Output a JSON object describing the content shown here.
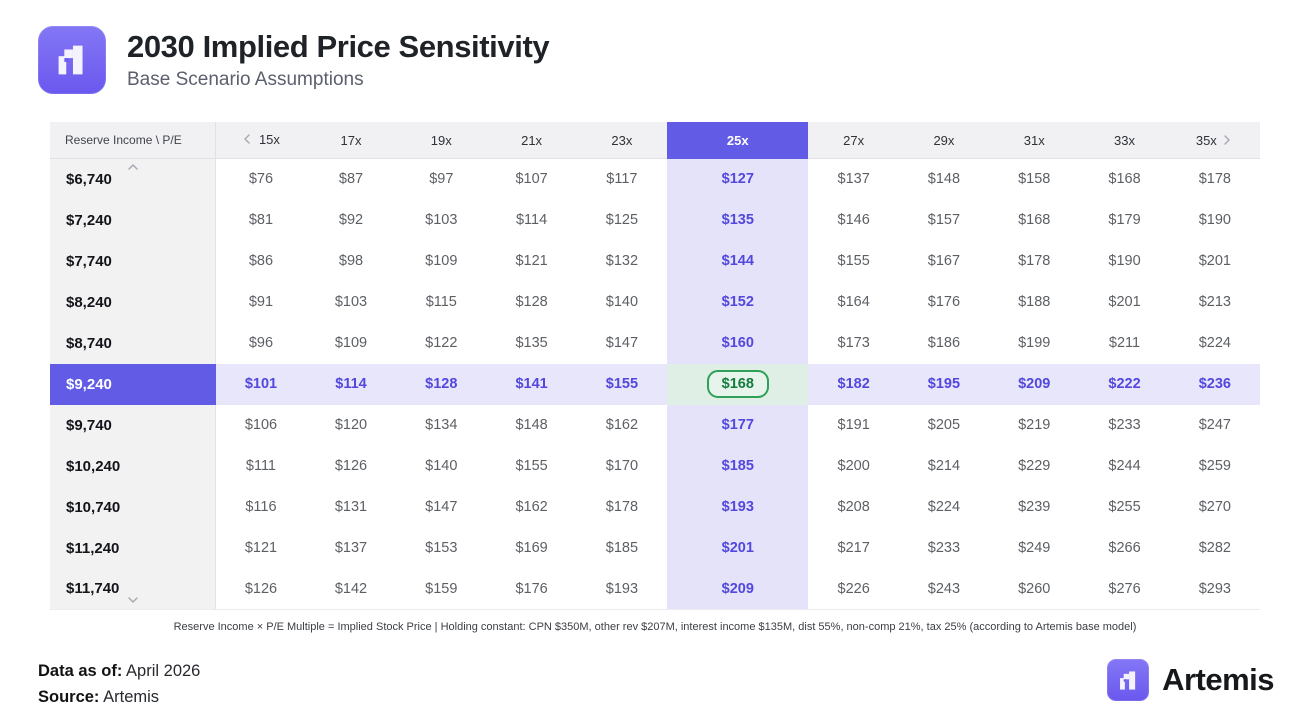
{
  "header": {
    "title": "2030 Implied Price Sensitivity",
    "subtitle": "Base Scenario Assumptions"
  },
  "table": {
    "corner_label": "Reserve Income \\ P/E",
    "footnote": "Reserve Income × P/E Multiple = Implied Stock Price | Holding constant: CPN $350M, other rev $207M, interest income $135M, dist 55%, non-comp 21%, tax 25% (according to Artemis base model)"
  },
  "chart_data": {
    "type": "table",
    "title": "2030 Implied Price Sensitivity",
    "subtitle": "Base Scenario Assumptions",
    "row_axis_label": "Reserve Income",
    "col_axis_label": "P/E",
    "columns": [
      "15x",
      "17x",
      "19x",
      "21x",
      "23x",
      "25x",
      "27x",
      "29x",
      "31x",
      "33x",
      "35x"
    ],
    "row_labels": [
      "$6,740",
      "$7,240",
      "$7,740",
      "$8,240",
      "$8,740",
      "$9,240",
      "$9,740",
      "$10,240",
      "$10,740",
      "$11,240",
      "$11,740"
    ],
    "values_usd": [
      [
        76,
        87,
        97,
        107,
        117,
        127,
        137,
        148,
        158,
        168,
        178
      ],
      [
        81,
        92,
        103,
        114,
        125,
        135,
        146,
        157,
        168,
        179,
        190
      ],
      [
        86,
        98,
        109,
        121,
        132,
        144,
        155,
        167,
        178,
        190,
        201
      ],
      [
        91,
        103,
        115,
        128,
        140,
        152,
        164,
        176,
        188,
        201,
        213
      ],
      [
        96,
        109,
        122,
        135,
        147,
        160,
        173,
        186,
        199,
        211,
        224
      ],
      [
        101,
        114,
        128,
        141,
        155,
        168,
        182,
        195,
        209,
        222,
        236
      ],
      [
        106,
        120,
        134,
        148,
        162,
        177,
        191,
        205,
        219,
        233,
        247
      ],
      [
        111,
        126,
        140,
        155,
        170,
        185,
        200,
        214,
        229,
        244,
        259
      ],
      [
        116,
        131,
        147,
        162,
        178,
        193,
        208,
        224,
        239,
        255,
        270
      ],
      [
        121,
        137,
        153,
        169,
        185,
        201,
        217,
        233,
        249,
        266,
        282
      ],
      [
        126,
        142,
        159,
        176,
        193,
        209,
        226,
        243,
        260,
        276,
        293
      ]
    ],
    "highlighted_column": "25x",
    "highlighted_row": "$9,240",
    "highlighted_cell_value": "$168"
  },
  "footer": {
    "data_as_of_label": "Data as of:",
    "data_as_of_value": "April 2026",
    "source_label": "Source:",
    "source_value": "Artemis",
    "brand_name": "Artemis"
  },
  "colors": {
    "accent": "#615BE6",
    "accent-text": "#5348DD",
    "accent-soft": "#E5E3FA",
    "accent-soft-row": "#E8E6FB",
    "green-border": "#2FA05A",
    "green-text": "#147A3D",
    "green-bg": "#E6F4EB",
    "green-cell-bg": "#E0EFE5"
  }
}
